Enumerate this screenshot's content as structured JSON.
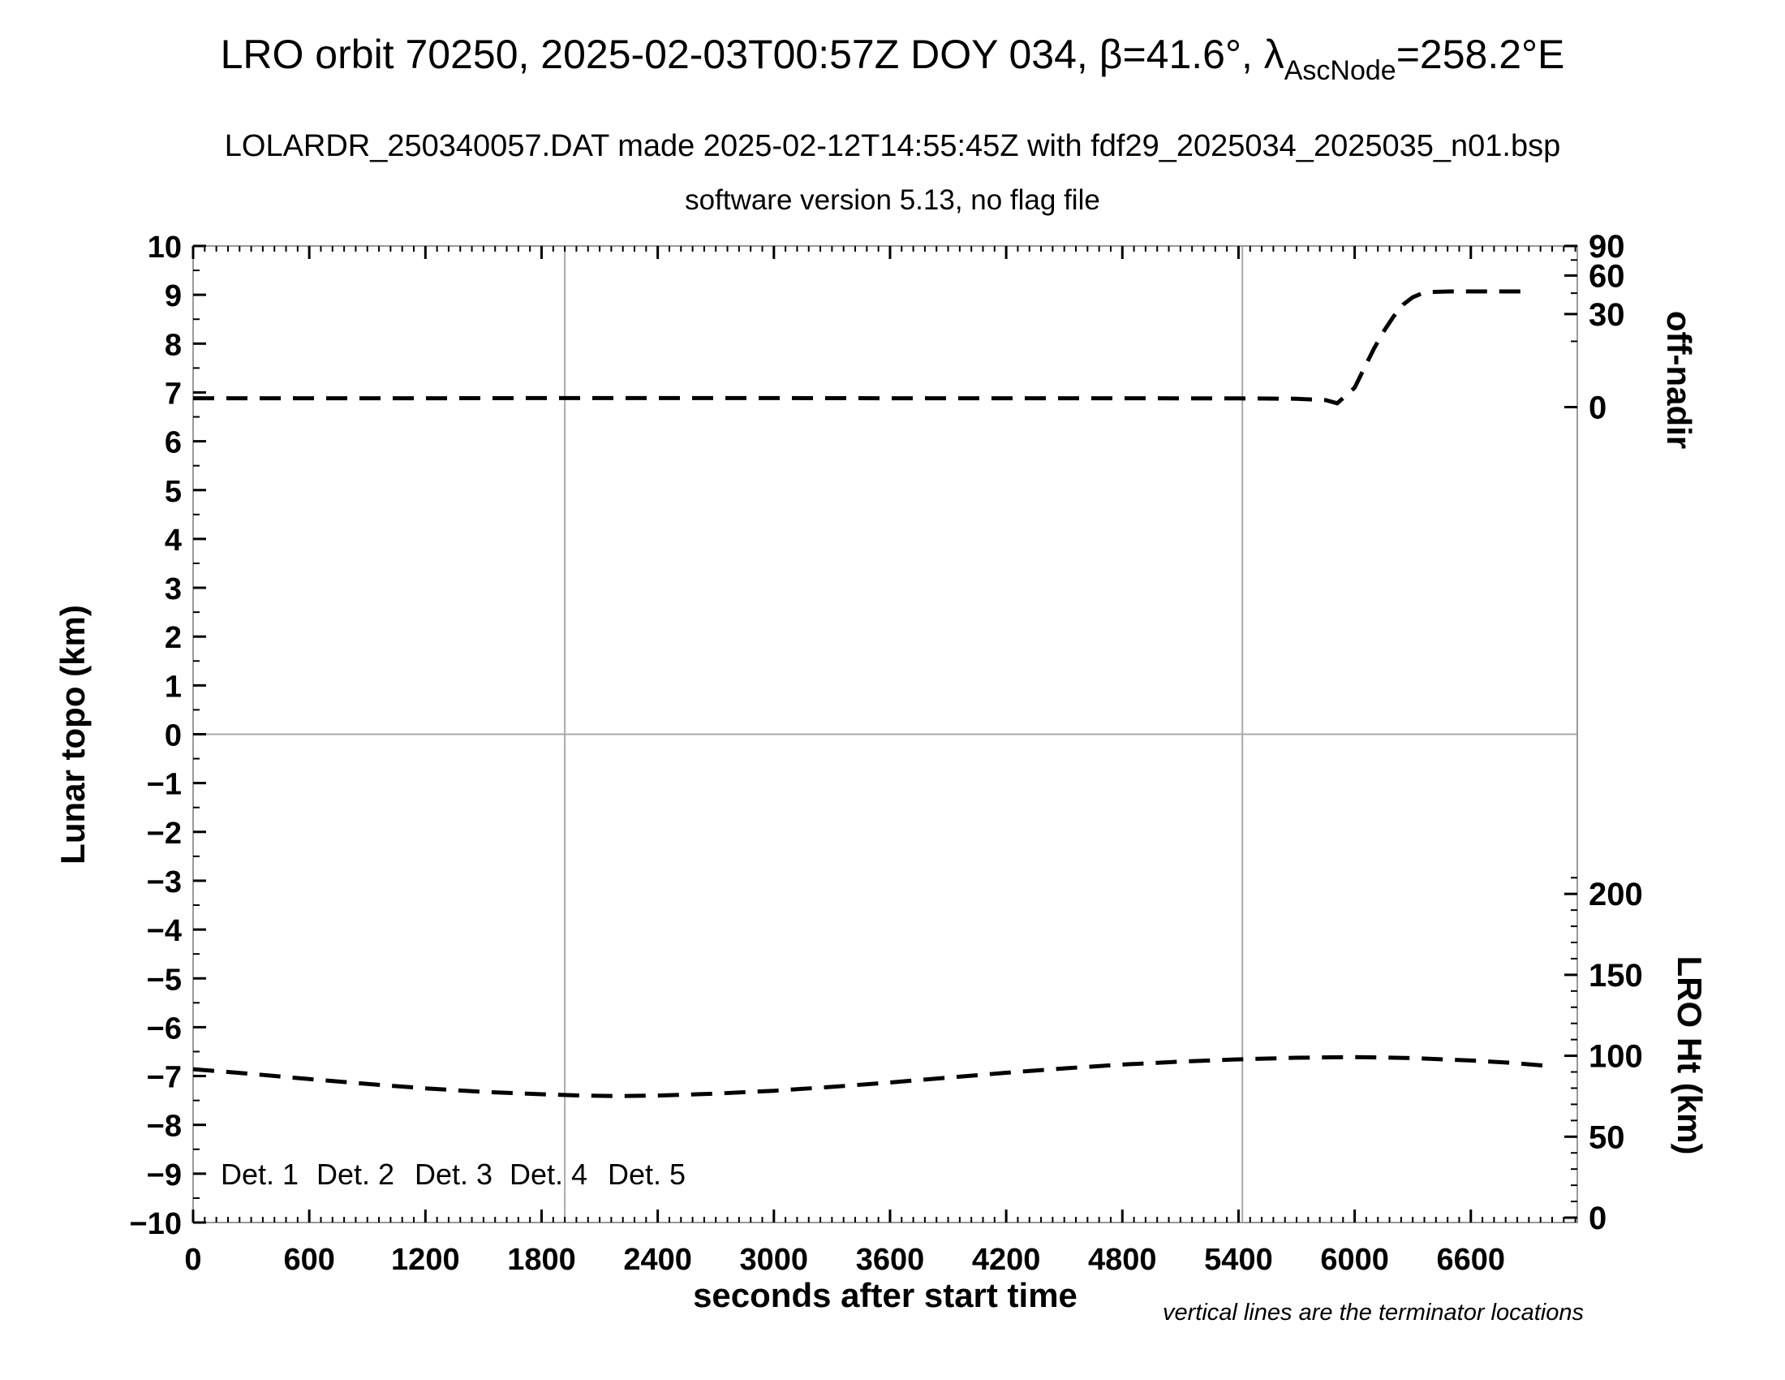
{
  "header": {
    "title_prefix": "LRO orbit 70250, 2025-02-03T00:57Z DOY 034, β=41.6°, λ",
    "title_subscript": "AscNode",
    "title_suffix": "=258.2°E",
    "subtitle": "LOLARDR_250340057.DAT made 2025-02-12T14:55:45Z with fdf29_2025034_2025035_n01.bsp",
    "subtitle2": "software version 5.13, no flag file"
  },
  "chart_data": {
    "type": "line",
    "title": "LRO orbit 70250, 2025-02-03T00:57Z DOY 034, β=41.6°, λAscNode=258.2°E",
    "x_axis": {
      "label": "seconds after start time",
      "min": 0,
      "max": 7150,
      "major_ticks": [
        0,
        600,
        1200,
        1800,
        2400,
        3000,
        3600,
        4200,
        4800,
        5400,
        6000,
        6600
      ],
      "minor_tick_step": 60
    },
    "y_axis_left": {
      "label": "Lunar topo (km)",
      "min": -10,
      "max": 10,
      "major_tick_step": 1,
      "minor_tick_step": 0.5,
      "zero_gridline": true
    },
    "right_axis_top": {
      "label": "off-nadir",
      "units": "degrees",
      "scale": "sqrt",
      "major_ticks": [
        90,
        60,
        30,
        0
      ],
      "minor_ticks": [
        75,
        45,
        15
      ],
      "zero_at_left_value": 6.7,
      "span_left_units": 3.3,
      "max_deg": 90
    },
    "right_axis_bottom": {
      "label": "LRO Ht (km)",
      "units": "km",
      "scale": "linear",
      "major_ticks": [
        200,
        150,
        100,
        50,
        0
      ],
      "minor_tick_step": 10,
      "minor_tick_max": 210,
      "left_value_at_0km": -9.9,
      "left_units_per_km": 0.03315
    },
    "terminator_lines_t": [
      1920,
      5420
    ],
    "footnote": "vertical lines are the terminator locations",
    "legend": [
      {
        "label": "Det. 1",
        "color": "#000000"
      },
      {
        "label": "Det. 2",
        "color": "#0000ff"
      },
      {
        "label": "Det. 3",
        "color": "#00dd00"
      },
      {
        "label": "Det. 4",
        "color": "#ffa500"
      },
      {
        "label": "Det. 5",
        "color": "#ff0000"
      }
    ],
    "series": [
      {
        "name": "off-nadir angle",
        "axis": "right_axis_top",
        "style": "dashed",
        "color": "#000000",
        "points": [
          [
            0,
            0.27
          ],
          [
            600,
            0.27
          ],
          [
            1200,
            0.27
          ],
          [
            1800,
            0.28
          ],
          [
            2400,
            0.28
          ],
          [
            3000,
            0.28
          ],
          [
            3600,
            0.27
          ],
          [
            4200,
            0.27
          ],
          [
            4800,
            0.27
          ],
          [
            5400,
            0.26
          ],
          [
            5700,
            0.24
          ],
          [
            5850,
            0.17
          ],
          [
            5910,
            0.05
          ],
          [
            5950,
            0.4
          ],
          [
            6000,
            1.3
          ],
          [
            6050,
            5.3
          ],
          [
            6100,
            11.9
          ],
          [
            6150,
            19.9
          ],
          [
            6200,
            28.3
          ],
          [
            6250,
            36.4
          ],
          [
            6300,
            41.8
          ],
          [
            6350,
            44.9
          ],
          [
            6400,
            46.0
          ],
          [
            6500,
            46.4
          ],
          [
            6600,
            46.4
          ],
          [
            6750,
            46.4
          ],
          [
            6900,
            46.4
          ]
        ]
      },
      {
        "name": "LRO height",
        "axis": "right_axis_bottom",
        "style": "dashed",
        "color": "#000000",
        "points": [
          [
            0,
            91.7
          ],
          [
            300,
            88.8
          ],
          [
            600,
            85.6
          ],
          [
            900,
            82.6
          ],
          [
            1200,
            79.9
          ],
          [
            1500,
            77.7
          ],
          [
            1800,
            76.2
          ],
          [
            2000,
            75.4
          ],
          [
            2200,
            75.1
          ],
          [
            2400,
            75.4
          ],
          [
            2700,
            76.6
          ],
          [
            3000,
            78.4
          ],
          [
            3300,
            80.8
          ],
          [
            3600,
            83.5
          ],
          [
            3900,
            86.5
          ],
          [
            4200,
            89.5
          ],
          [
            4500,
            92.2
          ],
          [
            4800,
            94.6
          ],
          [
            5100,
            96.4
          ],
          [
            5400,
            97.8
          ],
          [
            5700,
            98.8
          ],
          [
            6000,
            99.2
          ],
          [
            6300,
            98.6
          ],
          [
            6600,
            97.1
          ],
          [
            6800,
            95.7
          ],
          [
            7020,
            93.5
          ]
        ]
      }
    ]
  }
}
